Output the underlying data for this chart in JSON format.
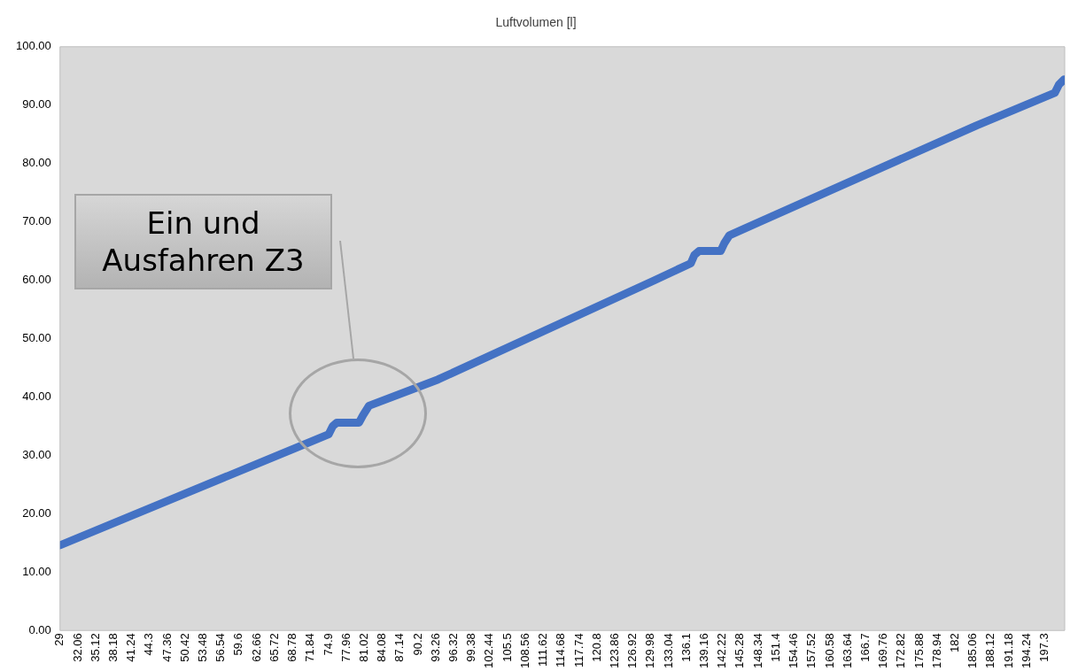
{
  "chart_data": {
    "type": "line",
    "title": "Luftvolumen [l]",
    "series": [
      {
        "color": "#4472c4",
        "x": [
          29,
          74.9,
          75.6,
          76.3,
          80.1,
          80.8,
          81.8,
          93.6,
          130.4,
          136.8,
          137.4,
          138.2,
          141.9,
          142.5,
          143.4,
          185.6,
          199.0,
          199.7,
          200.6
        ],
        "values": [
          14.6,
          33.6,
          35.0,
          35.6,
          35.6,
          36.9,
          38.5,
          43.0,
          59.9,
          62.9,
          64.3,
          65.0,
          65.0,
          66.3,
          67.7,
          86.5,
          92.1,
          93.5,
          94.4
        ]
      }
    ],
    "xlim": [
      29,
      200.7
    ],
    "xticks": [
      29,
      32.06,
      35.12,
      38.18,
      41.24,
      44.3,
      47.36,
      50.42,
      53.48,
      56.54,
      59.6,
      62.66,
      65.72,
      68.78,
      71.84,
      74.9,
      77.96,
      81.02,
      84.08,
      87.14,
      90.2,
      93.26,
      96.32,
      99.38,
      102.44,
      105.5,
      108.56,
      111.62,
      114.68,
      117.74,
      120.8,
      123.86,
      126.92,
      129.98,
      133.04,
      136.1,
      139.16,
      142.22,
      145.28,
      148.34,
      151.4,
      154.46,
      157.52,
      160.58,
      163.64,
      166.7,
      169.76,
      172.82,
      175.88,
      178.94,
      182,
      185.06,
      188.12,
      191.18,
      194.24,
      197.3
    ],
    "ylim": [
      0,
      100
    ],
    "yticks": [
      {
        "value": 0,
        "label": "0.00"
      },
      {
        "value": 10,
        "label": "10.00"
      },
      {
        "value": 20,
        "label": "20.00"
      },
      {
        "value": 30,
        "label": "30.00"
      },
      {
        "value": 40,
        "label": "40.00"
      },
      {
        "value": 50,
        "label": "50.00"
      },
      {
        "value": 60,
        "label": "60.00"
      },
      {
        "value": 70,
        "label": "70.00"
      },
      {
        "value": 80,
        "label": "80.00"
      },
      {
        "value": 90,
        "label": "90.00"
      },
      {
        "value": 100,
        "label": "100.00"
      }
    ],
    "annotations": [
      "Ein und Ausfahren Z3"
    ],
    "grid": false,
    "legend": false,
    "marker": "none",
    "line_style": "solid"
  }
}
